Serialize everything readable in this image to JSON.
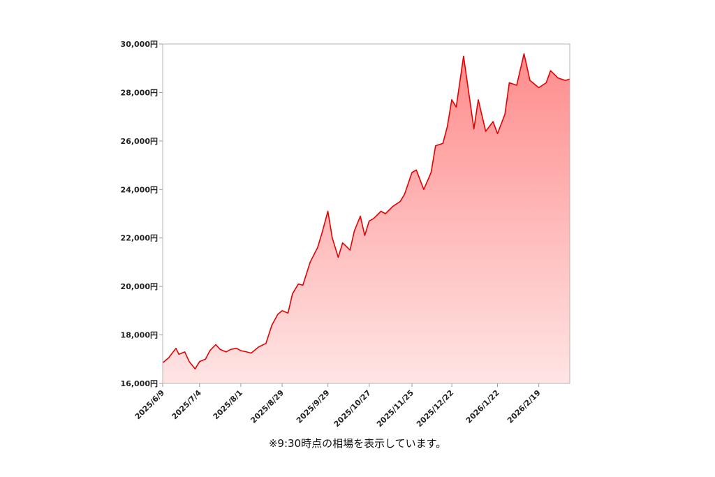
{
  "chart_data": {
    "type": "area",
    "title": "",
    "xlabel": "",
    "ylabel": "",
    "ylim": [
      16000,
      30000
    ],
    "y_ticks": [
      16000,
      18000,
      20000,
      22000,
      24000,
      26000,
      28000,
      30000
    ],
    "y_tick_labels": [
      "16,000円",
      "18,000円",
      "20,000円",
      "22,000円",
      "24,000円",
      "26,000円",
      "28,000円",
      "30,000円"
    ],
    "x_tick_labels": [
      "2025/6/9",
      "2025/7/4",
      "2025/8/1",
      "2025/8/29",
      "2025/9/29",
      "2025/10/27",
      "2025/11/25",
      "2025/12/22",
      "2026/1/22",
      "2026/2/19"
    ],
    "line_color": "#e60000",
    "fill_top_color": "#ff8c8c",
    "fill_bottom_color": "#ffe4e4",
    "grid": false,
    "series": [
      {
        "name": "",
        "x": [
          "2025/6/9",
          "2025/6/13",
          "2025/6/18",
          "2025/6/20",
          "2025/6/24",
          "2025/6/27",
          "2025/7/1",
          "2025/7/4",
          "2025/7/8",
          "2025/7/11",
          "2025/7/15",
          "2025/7/18",
          "2025/7/22",
          "2025/7/25",
          "2025/7/29",
          "2025/8/1",
          "2025/8/5",
          "2025/8/8",
          "2025/8/13",
          "2025/8/18",
          "2025/8/22",
          "2025/8/26",
          "2025/8/29",
          "2025/9/2",
          "2025/9/5",
          "2025/9/9",
          "2025/9/12",
          "2025/9/17",
          "2025/9/22",
          "2025/9/25",
          "2025/9/29",
          "2025/10/2",
          "2025/10/6",
          "2025/10/9",
          "2025/10/14",
          "2025/10/17",
          "2025/10/21",
          "2025/10/24",
          "2025/10/27",
          "2025/10/30",
          "2025/11/4",
          "2025/11/7",
          "2025/11/12",
          "2025/11/17",
          "2025/11/20",
          "2025/11/25",
          "2025/11/28",
          "2025/12/3",
          "2025/12/8",
          "2025/12/11",
          "2025/12/16",
          "2025/12/19",
          "2025/12/22",
          "2025/12/25",
          "2025/12/30",
          "2026/1/6",
          "2026/1/9",
          "2026/1/14",
          "2026/1/19",
          "2026/1/22",
          "2026/1/27",
          "2026/1/30",
          "2026/2/4",
          "2026/2/9",
          "2026/2/13",
          "2026/2/19",
          "2026/2/24",
          "2026/2/27",
          "2026/3/4",
          "2026/3/9",
          "2026/3/12"
        ],
        "values": [
          16850,
          17050,
          17450,
          17200,
          17300,
          16900,
          16600,
          16900,
          17000,
          17350,
          17600,
          17400,
          17300,
          17400,
          17450,
          17350,
          17300,
          17250,
          17500,
          17650,
          18400,
          18850,
          19000,
          18900,
          19700,
          20100,
          20050,
          21000,
          21600,
          22200,
          23100,
          22000,
          21200,
          21800,
          21500,
          22300,
          22900,
          22100,
          22700,
          22800,
          23100,
          23000,
          23300,
          23500,
          23800,
          24700,
          24800,
          24000,
          24700,
          25800,
          25900,
          26600,
          27700,
          27400,
          29500,
          26500,
          27700,
          26400,
          26800,
          26300,
          27100,
          28400,
          28300,
          29600,
          28500,
          28200,
          28400,
          28900,
          28600,
          28500,
          28550
        ]
      }
    ],
    "note": "※9:30時点の相場を表示しています。"
  }
}
